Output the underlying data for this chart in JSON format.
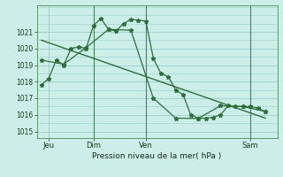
{
  "xlabel": "Pression niveau de la mer( hPa )",
  "bg_color": "#cceee8",
  "grid_color": "#99cccc",
  "line_color": "#2d6e3a",
  "yticks": [
    1015,
    1016,
    1017,
    1018,
    1019,
    1020,
    1021
  ],
  "ylim_min": 1014.6,
  "ylim_max": 1022.6,
  "xlim_min": -0.3,
  "xlim_max": 15.8,
  "line1_x": [
    0,
    0.5,
    1.0,
    1.5,
    2.0,
    2.5,
    3.0,
    3.5,
    4.0,
    4.5,
    5.0,
    5.5,
    6.0,
    6.5,
    7.0,
    7.5,
    8.0,
    8.5,
    9.0,
    9.5,
    10.0,
    10.5,
    11.0,
    11.5,
    12.0,
    12.5,
    13.0,
    13.5,
    14.0,
    14.5,
    15.0
  ],
  "line1_y": [
    1017.8,
    1018.2,
    1019.3,
    1019.0,
    1020.0,
    1020.1,
    1020.0,
    1021.4,
    1021.8,
    1021.15,
    1021.05,
    1021.5,
    1021.75,
    1021.7,
    1021.65,
    1019.4,
    1018.5,
    1018.3,
    1017.5,
    1017.2,
    1016.0,
    1015.8,
    1015.8,
    1015.85,
    1016.0,
    1016.55,
    1016.5,
    1016.5,
    1016.5,
    1016.4,
    1016.2
  ],
  "line2_x": [
    0,
    1.5,
    3.0,
    4.5,
    6.0,
    7.5,
    9.0,
    10.5,
    12.0,
    13.5,
    15.0
  ],
  "line2_y": [
    1019.3,
    1019.05,
    1020.05,
    1021.15,
    1021.1,
    1017.0,
    1015.8,
    1015.78,
    1016.55,
    1016.5,
    1016.2
  ],
  "trend_x": [
    0,
    15.0
  ],
  "trend_y": [
    1020.5,
    1015.8
  ],
  "xtick_positions": [
    0.5,
    3.5,
    7.0,
    14.0
  ],
  "xtick_labels": [
    "Jeu",
    "Dim",
    "Ven",
    "Sam"
  ],
  "vline_positions": [
    3.5,
    7.0,
    14.0
  ]
}
